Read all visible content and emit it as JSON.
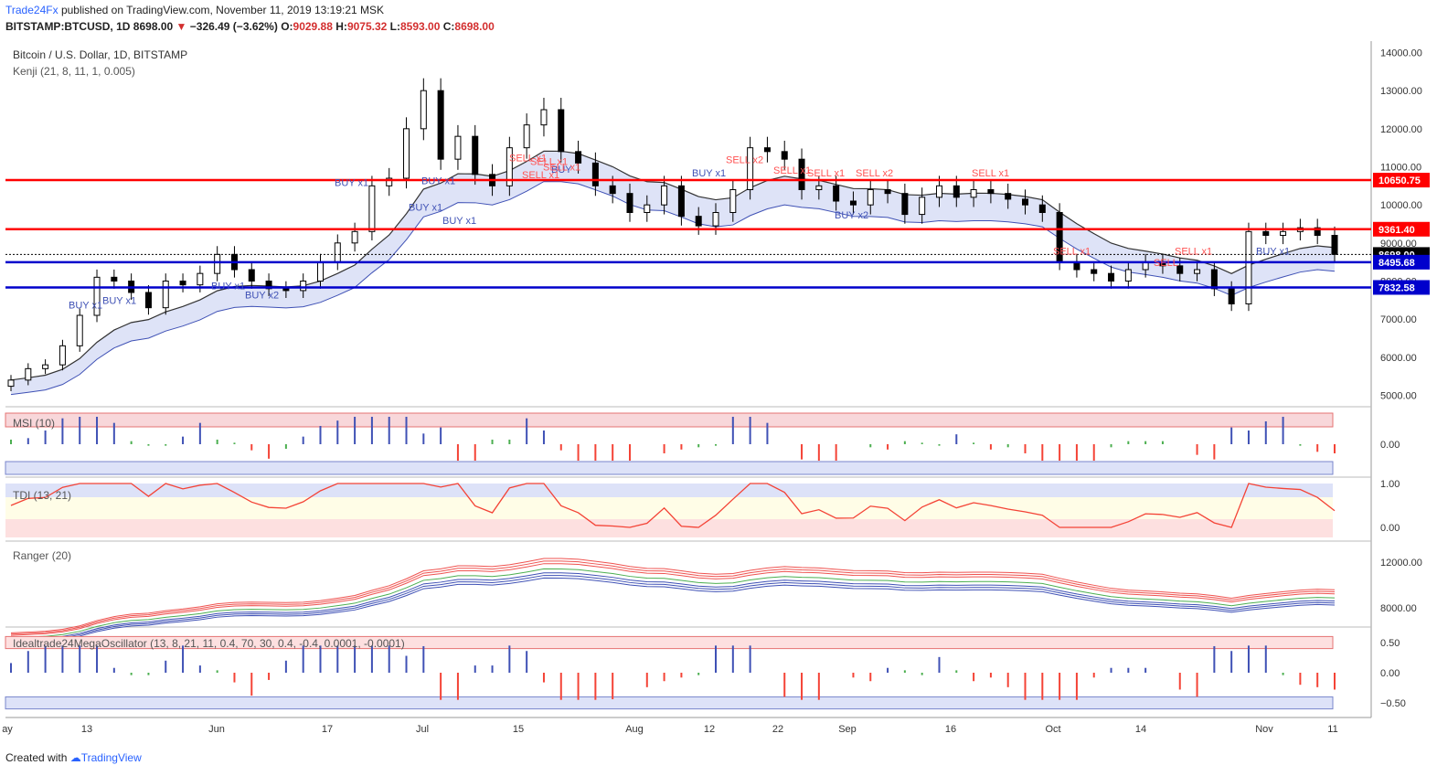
{
  "header": {
    "brand": "Trade24Fx",
    "published": "published on TradingView.com, November 11, 2019 13:19:21 MSK",
    "symbol": "BITSTAMP:BTCUSD, 1D",
    "last": "8698.00",
    "change": "−326.49 (−3.62%)",
    "o_label": "O:",
    "o": "9029.88",
    "h_label": "H:",
    "h": "9075.32",
    "l_label": "L:",
    "l": "8593.00",
    "c_label": "C:",
    "c": "8698.00"
  },
  "panes": {
    "main_title": "Bitcoin / U.S. Dollar, 1D, BITSTAMP",
    "main_indicator": "Kenji (21, 8, 11, 1, 0.005)",
    "msi": "MSI (10)",
    "tdi": "TDI (13, 21)",
    "ranger": "Ranger (20)",
    "osc": "Idealtrade24MegaOscillator (13, 8, 21, 11, 0.4, 70, 30, 0.4, -0.4, 0.0001, -0.0001)"
  },
  "footer": {
    "created": "Created with",
    "brand": "TradingView"
  },
  "colors": {
    "up": "#ffffff",
    "down": "#000000",
    "red_line": "#ff0000",
    "blue_line": "#0000cc",
    "buy": "#3f51b5",
    "sell": "#ff5252"
  },
  "chart_data": {
    "type": "candlestick",
    "price_axis": [
      "14000.00",
      "13000.00",
      "12000.00",
      "11000.00",
      "10000.00",
      "9000.00",
      "8000.00",
      "7000.00",
      "6000.00",
      "5000.00"
    ],
    "ylim": [
      4700,
      14300
    ],
    "levels": [
      {
        "value": 10650.75,
        "label": "10650.75",
        "color": "#ff0000"
      },
      {
        "value": 9361.4,
        "label": "9361.40",
        "color": "#ff0000"
      },
      {
        "value": 8698.0,
        "label": "8698.00",
        "color": "#000000"
      },
      {
        "value": 8495.68,
        "label": "8495.68",
        "color": "#0000cc"
      },
      {
        "value": 7832.58,
        "label": "7832.58",
        "color": "#0000cc"
      }
    ],
    "x_ticks": [
      "ay",
      "13",
      "Jun",
      "17",
      "Jul",
      "15",
      "Aug",
      "12",
      "22",
      "Sep",
      "16",
      "Oct",
      "14",
      "Nov",
      "11"
    ],
    "close_path": [
      5400,
      5700,
      5800,
      6300,
      7100,
      8100,
      8000,
      7700,
      7300,
      8000,
      7900,
      8200,
      8700,
      8300,
      8000,
      7800,
      7750,
      8000,
      8500,
      9000,
      9300,
      10500,
      10700,
      12000,
      13000,
      11200,
      11800,
      10800,
      10500,
      11500,
      12100,
      12500,
      11400,
      11100,
      10500,
      10300,
      9800,
      10000,
      10500,
      9700,
      9450,
      9800,
      10400,
      11500,
      11400,
      11200,
      10400,
      10500,
      10100,
      10000,
      10400,
      10300,
      9750,
      10200,
      10500,
      10200,
      10400,
      10300,
      10150,
      10000,
      9800,
      8500,
      8300,
      8200,
      8000,
      8300,
      8500,
      8400,
      8200,
      8300,
      7800,
      7400,
      9300,
      9200,
      9300,
      9400,
      9200,
      8700
    ],
    "annotations": [
      {
        "text": "BUY x1",
        "type": "buy",
        "x": "13",
        "value": 7280
      },
      {
        "text": "BUY x1",
        "type": "buy",
        "x": "13",
        "value": 7400
      },
      {
        "text": "BUY x1",
        "type": "buy",
        "x": "Jun",
        "value": 7780
      },
      {
        "text": "BUY x2",
        "type": "buy",
        "x": "Jun",
        "value": 7550
      },
      {
        "text": "BUY x1",
        "type": "buy",
        "x": "17",
        "value": 10500
      },
      {
        "text": "BUY x1",
        "type": "buy",
        "x": "Jul",
        "value": 9850
      },
      {
        "text": "BUY x1",
        "type": "buy",
        "x": "Jul",
        "value": 9500
      },
      {
        "text": "BUY x1",
        "type": "buy",
        "x": "Jul",
        "value": 10550
      },
      {
        "text": "BUY",
        "type": "buy",
        "x": "15",
        "value": 10850
      },
      {
        "text": "SELL x1",
        "type": "sell",
        "x": "15",
        "value": 11050
      },
      {
        "text": "SELL x1",
        "type": "sell",
        "x": "15",
        "value": 11150
      },
      {
        "text": "SELL x1",
        "type": "sell",
        "x": "15",
        "value": 10900
      },
      {
        "text": "SELL x1",
        "type": "sell",
        "x": "15",
        "value": 10700
      },
      {
        "text": "BUY x1",
        "type": "buy",
        "x": "12",
        "value": 10750
      },
      {
        "text": "SELL x2",
        "type": "sell",
        "x": "12",
        "value": 11100
      },
      {
        "text": "SELL x1",
        "type": "sell",
        "x": "22",
        "value": 10820
      },
      {
        "text": "SELL x1",
        "type": "sell",
        "x": "22",
        "value": 10750
      },
      {
        "text": "SELL x2",
        "type": "sell",
        "x": "Sep",
        "value": 10750
      },
      {
        "text": "BUY x2",
        "type": "buy",
        "x": "Sep",
        "value": 9650
      },
      {
        "text": "SELL x1",
        "type": "sell",
        "x": "16",
        "value": 10750
      },
      {
        "text": "SELL x1",
        "type": "sell",
        "x": "Oct",
        "value": 8700
      },
      {
        "text": "SELL x1",
        "type": "sell",
        "x": "14",
        "value": 8700
      },
      {
        "text": "SELL",
        "type": "sell",
        "x": "14",
        "value": 8400
      },
      {
        "text": "BUY x1",
        "type": "buy",
        "x": "Nov",
        "value": 8700
      }
    ],
    "msi": {
      "ticks": [
        "0.00"
      ]
    },
    "tdi": {
      "ticks": [
        "1.00",
        "0.00"
      ]
    },
    "ranger": {
      "ticks": [
        "12000.00",
        "8000.00"
      ]
    },
    "oscillator": {
      "ticks": [
        "0.50",
        "0.00",
        "−0.50"
      ]
    }
  }
}
